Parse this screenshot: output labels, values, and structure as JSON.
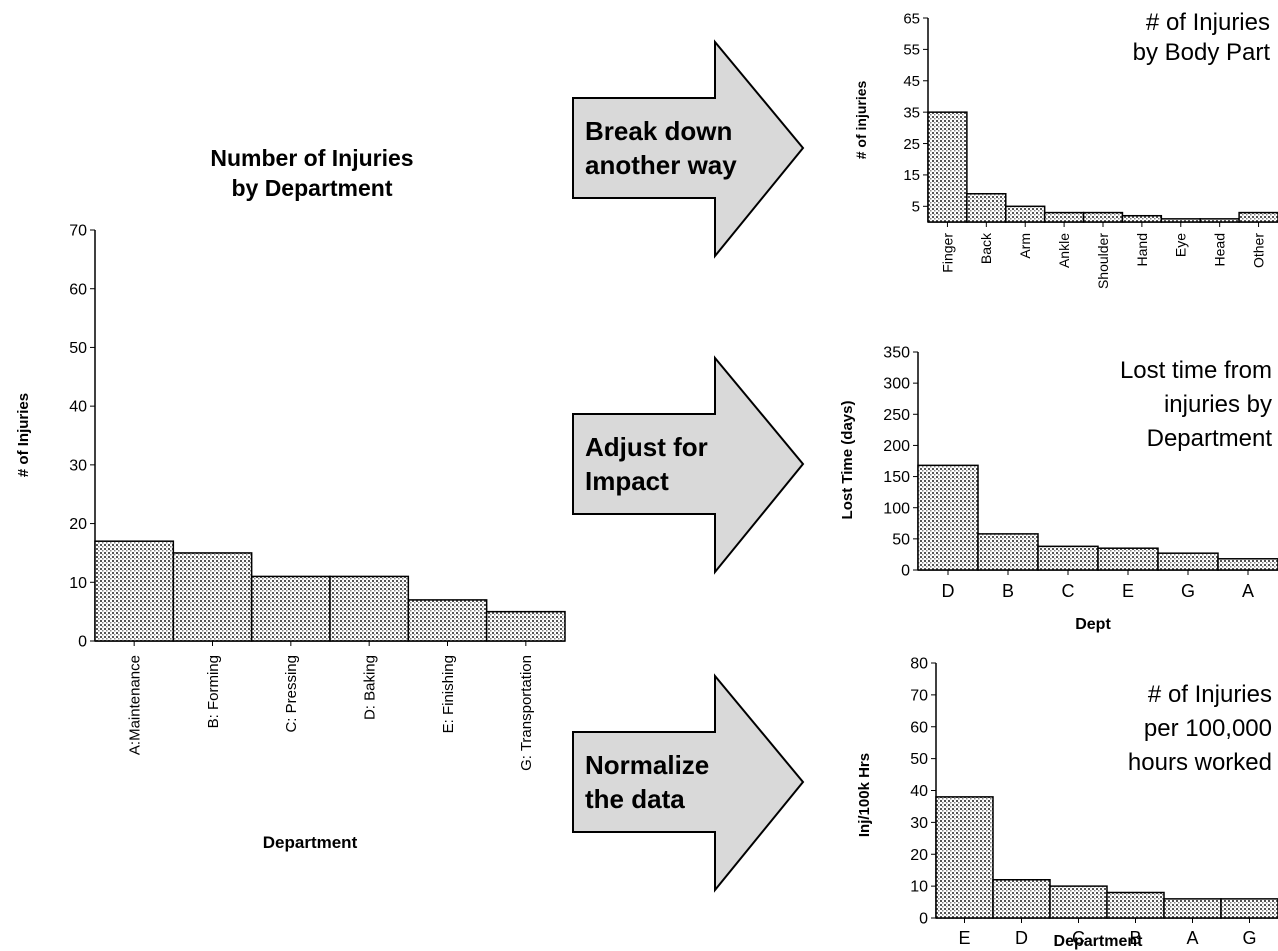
{
  "chart_data": [
    {
      "type": "bar",
      "title": "Number of Injuries by Department",
      "title_lines": [
        "Number of Injuries",
        "by Department"
      ],
      "xlabel": "Department",
      "ylabel": "# of Injuries",
      "categories": [
        "A:Maintenance",
        "B: Forming",
        "C: Pressing",
        "D: Baking",
        "E: Finishing",
        "G: Transportation"
      ],
      "values": [
        17,
        15,
        11,
        11,
        7,
        5
      ],
      "ylim": [
        0,
        70
      ],
      "yticks": [
        0,
        10,
        20,
        30,
        40,
        50,
        60,
        70
      ]
    },
    {
      "type": "bar",
      "title": "# of Injuries by Body Part",
      "title_lines": [
        "# of Injuries",
        "by Body Part"
      ],
      "xlabel": "",
      "ylabel": "# of injuries",
      "categories": [
        "Finger",
        "Back",
        "Arm",
        "Ankle",
        "Shoulder",
        "Hand",
        "Eye",
        "Head",
        "Other"
      ],
      "values": [
        35,
        9,
        5,
        3,
        3,
        2,
        1,
        1,
        3
      ],
      "ylim": [
        0,
        65
      ],
      "yticks": [
        5,
        15,
        25,
        35,
        45,
        55,
        65
      ]
    },
    {
      "type": "bar",
      "title": "Lost time from injuries by Department",
      "title_lines": [
        "Lost time from",
        "injuries by",
        "Department"
      ],
      "xlabel": "Dept",
      "ylabel": "Lost Time (days)",
      "categories": [
        "D",
        "B",
        "C",
        "E",
        "G",
        "A"
      ],
      "values": [
        168,
        58,
        38,
        35,
        27,
        18
      ],
      "ylim": [
        0,
        350
      ],
      "yticks": [
        0,
        50,
        100,
        150,
        200,
        250,
        300,
        350
      ]
    },
    {
      "type": "bar",
      "title": "# of Injuries per 100,000 hours worked",
      "title_lines": [
        "# of Injuries",
        "per 100,000",
        "hours worked"
      ],
      "xlabel": "Department",
      "ylabel": "Inj/100k Hrs",
      "categories": [
        "E",
        "D",
        "C",
        "B",
        "A",
        "G"
      ],
      "values": [
        38,
        12,
        10,
        8,
        6,
        6
      ],
      "ylim": [
        0,
        80
      ],
      "yticks": [
        0,
        10,
        20,
        30,
        40,
        50,
        60,
        70,
        80
      ]
    }
  ],
  "arrows": [
    {
      "lines": [
        "Break down",
        "another way"
      ]
    },
    {
      "lines": [
        "Adjust for",
        "Impact"
      ]
    },
    {
      "lines": [
        "Normalize",
        "the data"
      ]
    }
  ]
}
